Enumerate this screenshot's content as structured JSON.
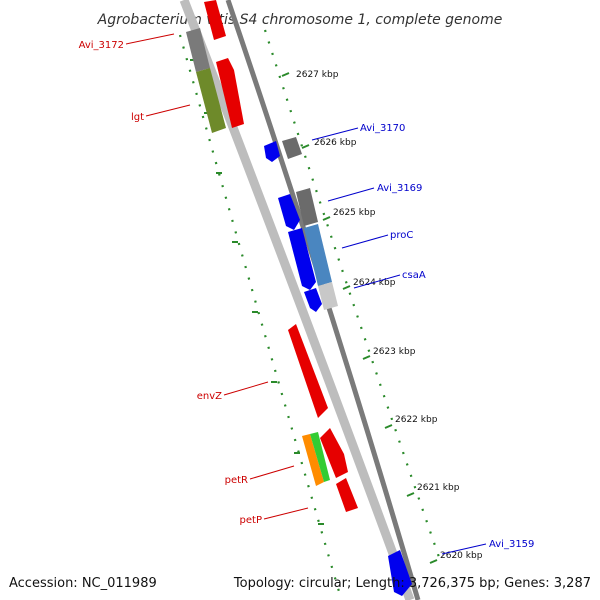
{
  "title": "Agrobacterium vitis S4 chromosome 1, complete genome",
  "footer": {
    "accession": "Accession: NC_011989",
    "summary": "Topology: circular; Length: 3,726,375 bp; Genes: 3,287"
  },
  "colors": {
    "forward_label": "#cc0000",
    "reverse_label": "#0000cc",
    "scale_dots": "#2a8a2a",
    "backbone": "#888888"
  },
  "scale_ticks": [
    "2627 kbp",
    "2626 kbp",
    "2625 kbp",
    "2624 kbp",
    "2623 kbp",
    "2622 kbp",
    "2621 kbp",
    "2620 kbp"
  ],
  "gene_labels_left": [
    "Avi_3172",
    "lgt",
    "envZ",
    "petR",
    "petP"
  ],
  "gene_labels_right": [
    "Avi_3170",
    "Avi_3169",
    "proC",
    "csaA",
    "Avi_3159"
  ]
}
